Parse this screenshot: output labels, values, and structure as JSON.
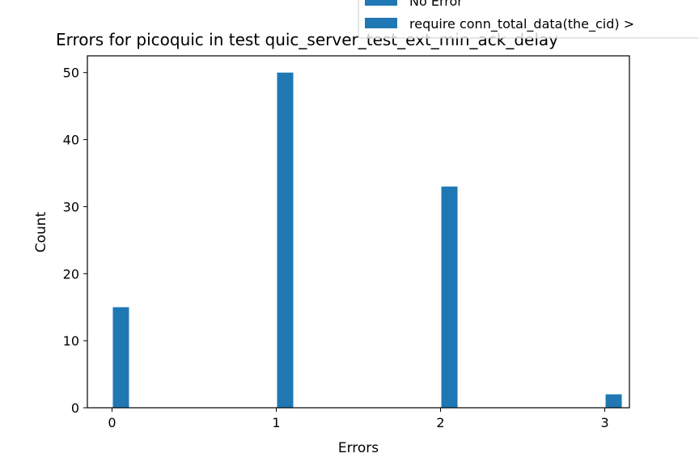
{
  "chart_data": {
    "type": "bar",
    "title": "Errors for picoquic in test quic_server_test_ext_min_ack_delay",
    "xlabel": "Errors",
    "ylabel": "Count",
    "x": [
      0,
      1,
      2,
      3
    ],
    "values": [
      15,
      50,
      33,
      2
    ],
    "xticks": [
      "0",
      "1",
      "2",
      "3"
    ],
    "yticks": [
      "0",
      "10",
      "20",
      "30",
      "40",
      "50"
    ],
    "xlim": [
      -0.15,
      3.15
    ],
    "ylim": [
      0,
      52.5
    ],
    "grid": false,
    "legend": {
      "placement": "top-right",
      "entries": [
        "No Error",
        "require conn_total_data(the_cid) >"
      ]
    },
    "colors": {
      "bar": "#1f77b4"
    }
  }
}
